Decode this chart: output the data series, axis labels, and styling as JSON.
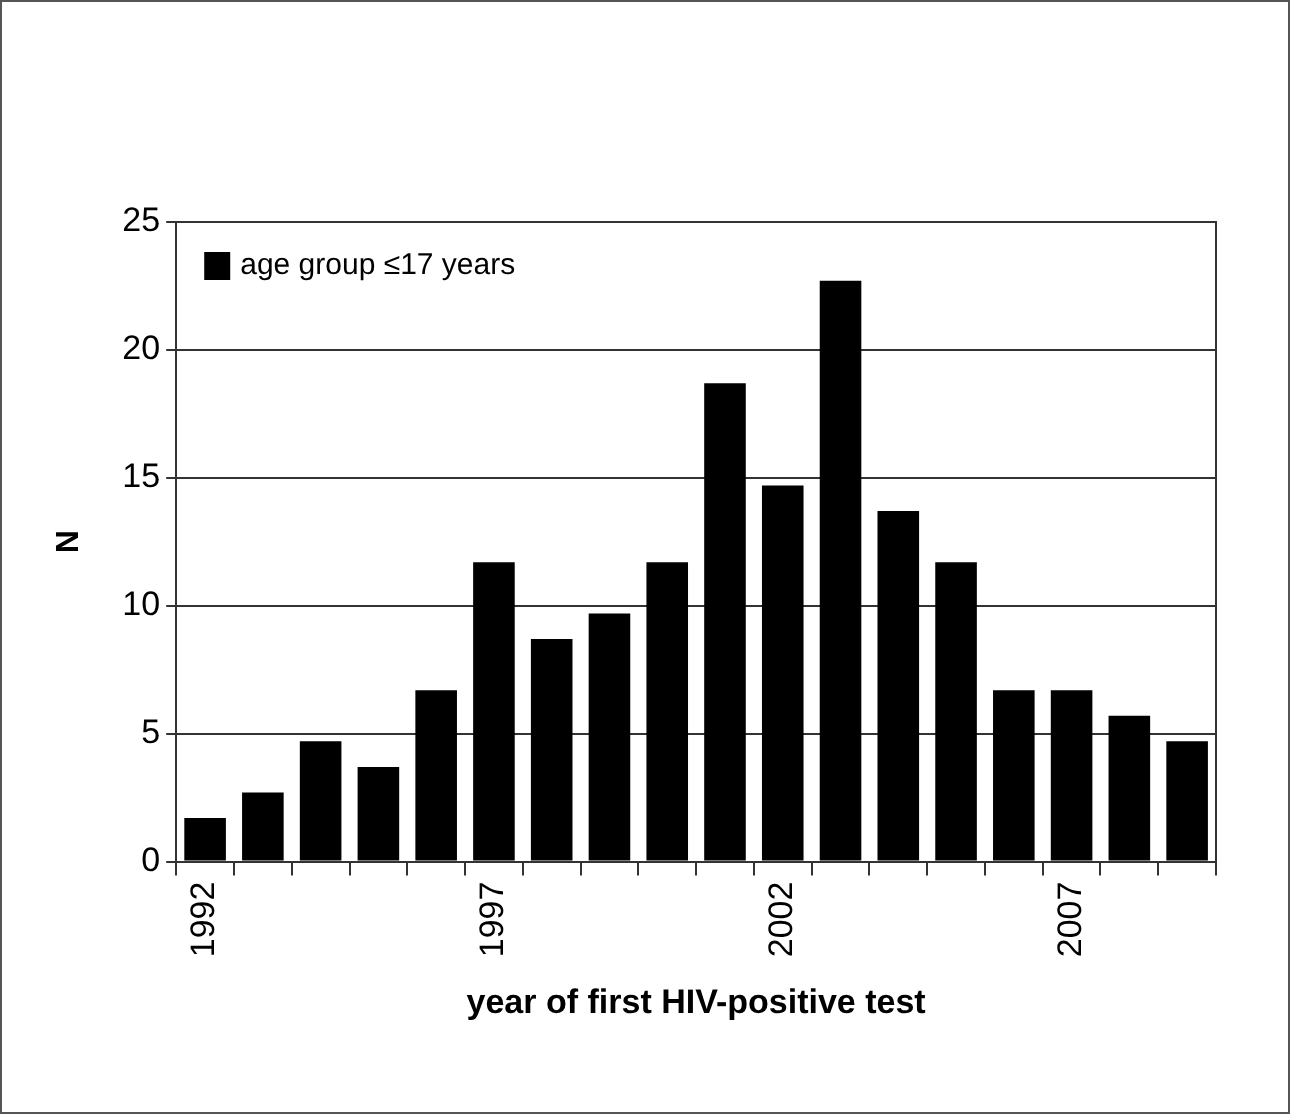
{
  "chart_data": {
    "type": "bar",
    "xlabel": "year of first HIV-positive test",
    "ylabel": "N",
    "categories": [
      "1992",
      null,
      null,
      null,
      null,
      "1997",
      null,
      null,
      null,
      null,
      "2002",
      null,
      null,
      null,
      null,
      "2007",
      null,
      null
    ],
    "series": [
      {
        "name": "age group ≤17 years",
        "color": "#000000",
        "values": [
          1.7,
          2.7,
          4.7,
          3.7,
          6.7,
          11.7,
          8.7,
          9.7,
          11.7,
          18.7,
          14.7,
          22.7,
          13.7,
          11.7,
          6.7,
          6.7,
          5.7,
          4.7
        ]
      }
    ],
    "ylim": [
      0,
      25
    ],
    "yticks": [
      0,
      5,
      10,
      15,
      20,
      25
    ],
    "grid": "y",
    "legend": "top left"
  }
}
